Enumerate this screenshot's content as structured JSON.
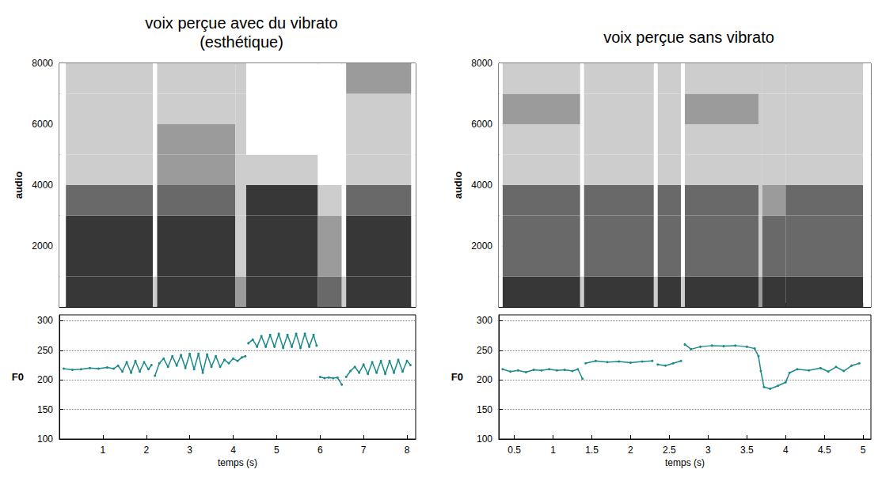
{
  "chart_data": [
    {
      "type": "heatmap",
      "title": "voix perçue avec du vibrato (esthétique)",
      "ylabel": "audio",
      "x_edges": [
        0,
        0.15,
        2.15,
        2.25,
        4.05,
        4.3,
        5.95,
        6.5,
        6.6,
        8.1,
        8.2
      ],
      "y_edges": [
        0,
        1000,
        2000,
        3000,
        4000,
        5000,
        6000,
        7000,
        8000
      ],
      "cells": [
        [
          0,
          0,
          0,
          0,
          0,
          0,
          0,
          0
        ],
        [
          4,
          4,
          4,
          3,
          1,
          1,
          1,
          1
        ],
        [
          1,
          0,
          0,
          0,
          0,
          0,
          0,
          0
        ],
        [
          4,
          4,
          4,
          3,
          2,
          2,
          1,
          1
        ],
        [
          2,
          1,
          1,
          1,
          1,
          1,
          1,
          1
        ],
        [
          4,
          4,
          4,
          4,
          1,
          0,
          0,
          0
        ],
        [
          3,
          2,
          2,
          1,
          0,
          0,
          0,
          0
        ],
        [
          1,
          0,
          0,
          0,
          0,
          0,
          0,
          0
        ],
        [
          4,
          4,
          4,
          3,
          1,
          1,
          1,
          2
        ],
        [
          0,
          0,
          0,
          0,
          0,
          0,
          0,
          0
        ]
      ],
      "xlim": [
        0,
        8.2
      ],
      "xticks": [
        1,
        2,
        3,
        4,
        5,
        6,
        7,
        8
      ],
      "ylim": [
        0,
        8000
      ],
      "yticks": [
        2000,
        4000,
        6000,
        8000
      ],
      "tick_labels": "y",
      "grid": false
    },
    {
      "type": "line",
      "ylabel": "F0",
      "xlabel": "temps (s)",
      "color": "#1b8a8a",
      "marker": "circle",
      "line_style": "solid",
      "x": [
        0.1,
        0.3,
        0.5,
        0.7,
        0.9,
        1.1,
        1.25,
        1.35,
        1.45,
        1.55,
        1.65,
        1.75,
        1.85,
        1.95,
        2.05,
        2.12,
        2.16,
        2.2,
        2.3,
        2.4,
        2.5,
        2.6,
        2.7,
        2.8,
        2.9,
        3.0,
        3.1,
        3.2,
        3.3,
        3.4,
        3.5,
        3.6,
        3.7,
        3.8,
        3.9,
        4.0,
        4.1,
        4.2,
        4.28,
        4.3,
        4.35,
        4.45,
        4.55,
        4.65,
        4.75,
        4.85,
        4.95,
        5.05,
        5.15,
        5.25,
        5.35,
        5.45,
        5.55,
        5.65,
        5.75,
        5.85,
        5.92,
        5.96,
        6.0,
        6.1,
        6.2,
        6.3,
        6.4,
        6.5,
        6.55,
        6.6,
        6.7,
        6.8,
        6.9,
        7.0,
        7.1,
        7.2,
        7.3,
        7.4,
        7.5,
        7.6,
        7.7,
        7.8,
        7.9,
        8.0,
        8.08
      ],
      "values": [
        219,
        217,
        218,
        220,
        219,
        221,
        219,
        224,
        214,
        230,
        212,
        232,
        214,
        230,
        218,
        225,
        null,
        207,
        228,
        236,
        222,
        240,
        224,
        242,
        220,
        244,
        218,
        244,
        212,
        243,
        222,
        240,
        222,
        234,
        228,
        236,
        232,
        238,
        240,
        null,
        262,
        268,
        256,
        274,
        256,
        276,
        256,
        278,
        254,
        276,
        256,
        278,
        254,
        278,
        256,
        276,
        258,
        null,
        205,
        203,
        204,
        203,
        204,
        192,
        null,
        205,
        215,
        222,
        212,
        226,
        210,
        230,
        212,
        232,
        210,
        232,
        212,
        234,
        214,
        232,
        225
      ],
      "xlim": [
        0,
        8.2
      ],
      "xticks": [
        1,
        2,
        3,
        4,
        5,
        6,
        7,
        8
      ],
      "ylim": [
        100,
        310
      ],
      "yticks": [
        100,
        150,
        200,
        250,
        300
      ],
      "grid": "y"
    },
    {
      "type": "heatmap",
      "title": "voix perçue sans vibrato",
      "ylabel": "audio",
      "x_edges": [
        0.3,
        0.35,
        1.35,
        1.4,
        2.3,
        2.35,
        2.65,
        2.7,
        3.65,
        3.7,
        4.0,
        5.0,
        5.1
      ],
      "y_edges": [
        0,
        1000,
        2000,
        3000,
        4000,
        5000,
        6000,
        7000,
        8000
      ],
      "cells": [
        [
          0,
          0,
          0,
          0,
          0,
          0,
          0,
          0
        ],
        [
          4,
          3,
          3,
          3,
          1,
          1,
          2,
          1
        ],
        [
          1,
          0,
          0,
          0,
          0,
          0,
          0,
          0
        ],
        [
          4,
          3,
          3,
          3,
          1,
          1,
          1,
          1
        ],
        [
          1,
          0,
          0,
          0,
          0,
          0,
          0,
          0
        ],
        [
          4,
          3,
          3,
          3,
          1,
          1,
          1,
          1
        ],
        [
          1,
          0,
          0,
          0,
          0,
          0,
          0,
          0
        ],
        [
          4,
          3,
          3,
          3,
          1,
          1,
          2,
          1
        ],
        [
          2,
          1,
          1,
          1,
          1,
          1,
          1,
          1
        ],
        [
          4,
          3,
          3,
          2,
          1,
          1,
          1,
          1
        ],
        [
          4,
          3,
          3,
          3,
          1,
          1,
          1,
          1
        ],
        [
          0,
          0,
          0,
          0,
          0,
          0,
          0,
          0
        ]
      ],
      "xlim": [
        0.3,
        5.1
      ],
      "xticks": [
        0.5,
        1,
        1.5,
        2,
        2.5,
        3,
        3.5,
        4,
        4.5,
        5
      ],
      "ylim": [
        0,
        8000
      ],
      "yticks": [
        2000,
        4000,
        6000,
        8000
      ],
      "tick_labels": "y",
      "grid": false
    },
    {
      "type": "line",
      "ylabel": "F0",
      "xlabel": "temps (s)",
      "color": "#1b8a8a",
      "marker": "circle",
      "line_style": "solid",
      "x": [
        0.35,
        0.45,
        0.55,
        0.65,
        0.75,
        0.85,
        0.95,
        1.05,
        1.15,
        1.25,
        1.32,
        1.38,
        1.4,
        1.42,
        1.55,
        1.7,
        1.85,
        2.0,
        2.15,
        2.28,
        2.32,
        2.35,
        2.45,
        2.55,
        2.65,
        2.68,
        2.7,
        2.78,
        2.9,
        3.05,
        3.2,
        3.35,
        3.5,
        3.6,
        3.65,
        3.68,
        3.72,
        3.8,
        3.9,
        4.0,
        4.05,
        4.15,
        4.3,
        4.45,
        4.55,
        4.65,
        4.75,
        4.85,
        4.95
      ],
      "values": [
        218,
        214,
        216,
        213,
        217,
        216,
        218,
        216,
        217,
        215,
        218,
        202,
        null,
        228,
        232,
        230,
        231,
        229,
        231,
        232,
        null,
        226,
        224,
        228,
        232,
        null,
        260,
        252,
        256,
        258,
        257,
        258,
        256,
        253,
        240,
        215,
        188,
        185,
        190,
        196,
        212,
        218,
        216,
        220,
        214,
        222,
        215,
        224,
        228
      ],
      "xlim": [
        0.3,
        5.1
      ],
      "xticks": [
        0.5,
        1,
        1.5,
        2,
        2.5,
        3,
        3.5,
        4,
        4.5,
        5
      ],
      "ylim": [
        100,
        310
      ],
      "yticks": [
        100,
        150,
        200,
        250,
        300
      ],
      "grid": "y"
    }
  ]
}
